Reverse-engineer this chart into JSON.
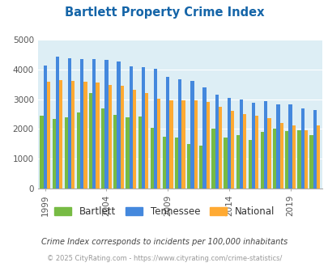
{
  "title": "Bartlett Property Crime Index",
  "title_color": "#1565a8",
  "subtitle": "Crime Index corresponds to incidents per 100,000 inhabitants",
  "footer": "© 2025 CityRating.com - https://www.cityrating.com/crime-statistics/",
  "years": [
    1999,
    2000,
    2001,
    2002,
    2003,
    2004,
    2005,
    2006,
    2007,
    2008,
    2009,
    2010,
    2011,
    2012,
    2013,
    2014,
    2015,
    2016,
    2017,
    2018,
    2019,
    2020,
    2021
  ],
  "bartlett": [
    2450,
    2350,
    2400,
    2550,
    3220,
    2700,
    2480,
    2400,
    2430,
    2050,
    1750,
    1700,
    1480,
    1450,
    2000,
    1700,
    1800,
    1620,
    1900,
    2020,
    1930,
    1950,
    1780
  ],
  "tennessee": [
    4150,
    4430,
    4380,
    4350,
    4360,
    4330,
    4280,
    4100,
    4080,
    4040,
    3760,
    3680,
    3610,
    3390,
    3170,
    3060,
    2980,
    2880,
    2950,
    2830,
    2830,
    2700,
    2640
  ],
  "national": [
    3600,
    3660,
    3620,
    3590,
    3580,
    3490,
    3450,
    3330,
    3210,
    3030,
    2960,
    2970,
    2960,
    2900,
    2740,
    2620,
    2510,
    2460,
    2360,
    2210,
    2110,
    1960,
    2130
  ],
  "bartlett_color": "#77bb44",
  "tennessee_color": "#4488dd",
  "national_color": "#ffaa33",
  "bg_color": "#ddeef5",
  "ylim": [
    0,
    5000
  ],
  "yticks": [
    0,
    1000,
    2000,
    3000,
    4000,
    5000
  ],
  "xtick_years": [
    1999,
    2004,
    2009,
    2014,
    2019
  ],
  "bar_width": 0.28,
  "legend_labels": [
    "Bartlett",
    "Tennessee",
    "National"
  ],
  "subtitle_color": "#444444",
  "footer_color": "#999999"
}
